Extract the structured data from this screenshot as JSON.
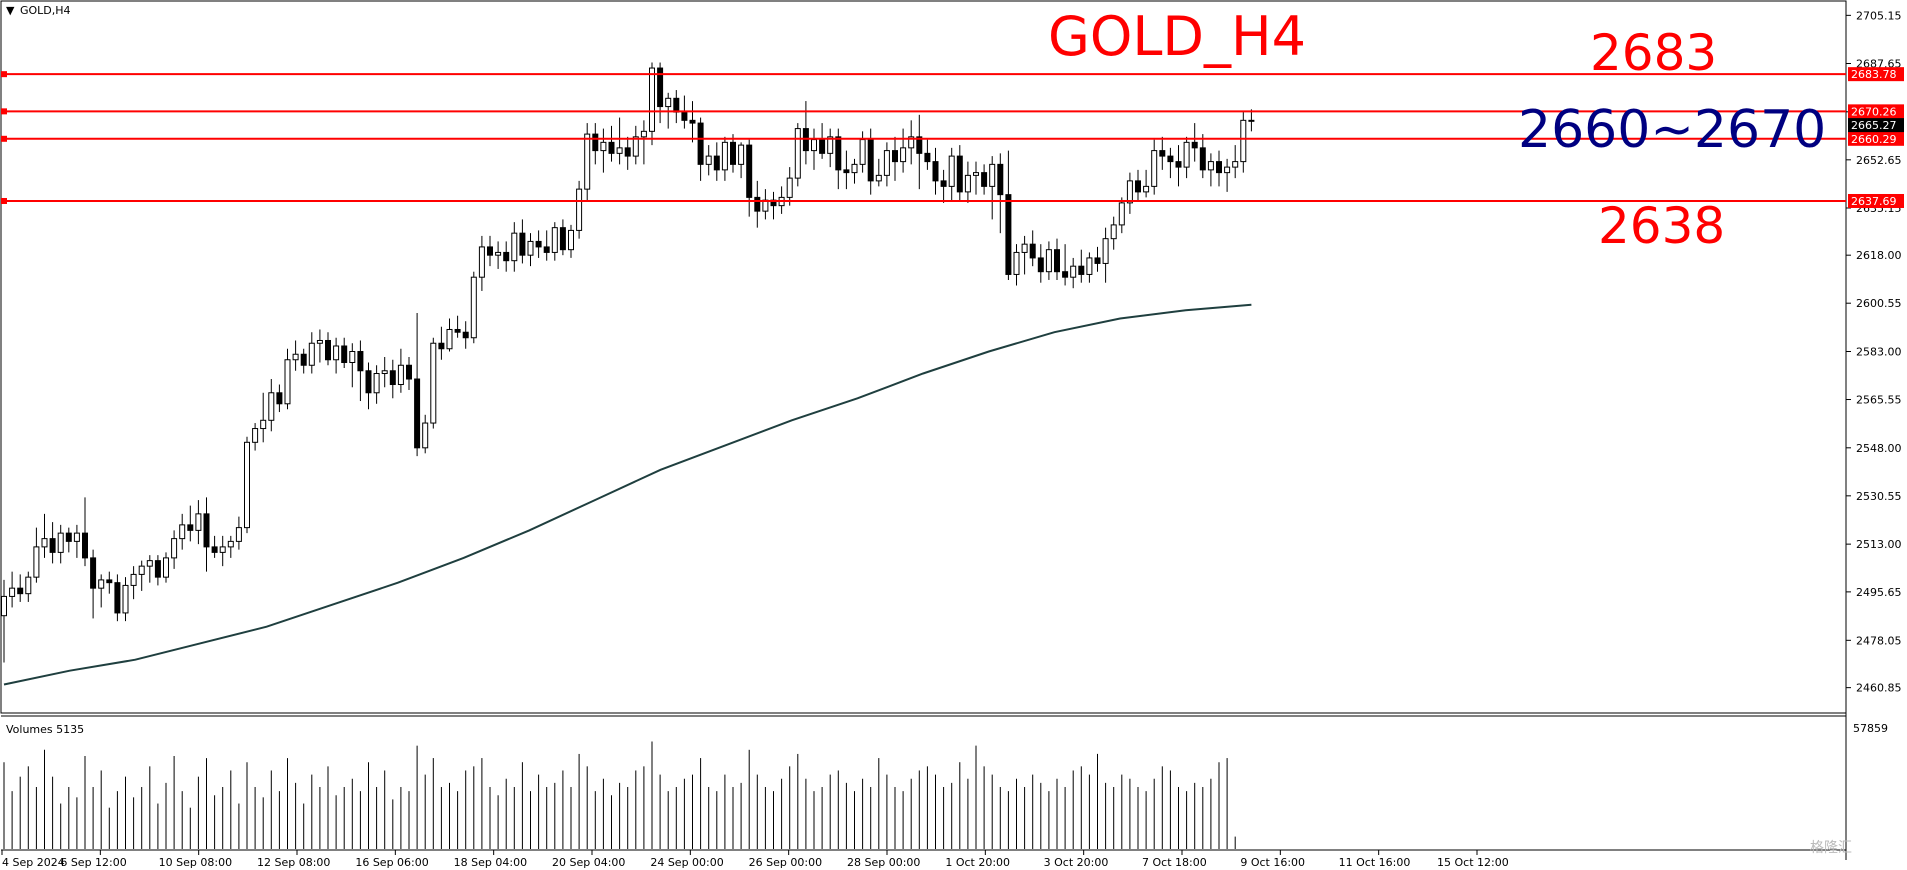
{
  "window": {
    "symbol_label": "GOLD,H4",
    "volume_label": "Volumes 5135",
    "watermark": "格隆汇"
  },
  "annotations": {
    "title": "GOLD_H4",
    "resistance": "2683",
    "zone": "2660~2670",
    "support": "2638"
  },
  "colors": {
    "level_line": "#ff0000",
    "zone_text": "#000080",
    "ma_line": "#1f3f3f",
    "candle_bull": "#ffffff",
    "candle_bear": "#000000",
    "current_price_tag": "#000000"
  },
  "chart_data": {
    "type": "candlestick",
    "price_axis": {
      "ticks": [
        "2705.15",
        "2687.65",
        "2670.10",
        "2652.65",
        "2635.15",
        "2618.00",
        "2600.55",
        "2583.00",
        "2565.55",
        "2548.00",
        "2530.55",
        "2513.00",
        "2495.65",
        "2478.05",
        "2460.85"
      ],
      "range": [
        2452,
        2710
      ]
    },
    "levels": [
      {
        "value": 2683.78,
        "label": "2683.78"
      },
      {
        "value": 2670.26,
        "label": "2670.26"
      },
      {
        "value": 2660.29,
        "label": "2660.29"
      },
      {
        "value": 2637.69,
        "label": "2637.69"
      }
    ],
    "current_price": {
      "value": 2665.27,
      "label": "2665.27"
    },
    "time_labels": [
      "4 Sep 2024",
      "6 Sep 12:00",
      "10 Sep 08:00",
      "12 Sep 08:00",
      "16 Sep 06:00",
      "18 Sep 04:00",
      "20 Sep 04:00",
      "24 Sep 00:00",
      "26 Sep 00:00",
      "28 Sep 00:00",
      "1 Oct 20:00",
      "3 Oct 20:00",
      "7 Oct 18:00",
      "9 Oct 16:00",
      "11 Oct 16:00",
      "15 Oct 12:00"
    ],
    "candles": [
      [
        2487,
        2500,
        2470,
        2494
      ],
      [
        2494,
        2503,
        2490,
        2497
      ],
      [
        2497,
        2502,
        2492,
        2495
      ],
      [
        2495,
        2503,
        2492,
        2501
      ],
      [
        2501,
        2519,
        2499,
        2512
      ],
      [
        2512,
        2524,
        2508,
        2515
      ],
      [
        2515,
        2521,
        2506,
        2510
      ],
      [
        2510,
        2520,
        2506,
        2517
      ],
      [
        2517,
        2519,
        2510,
        2514
      ],
      [
        2514,
        2520,
        2508,
        2517
      ],
      [
        2517,
        2530,
        2505,
        2508
      ],
      [
        2508,
        2511,
        2486,
        2497
      ],
      [
        2497,
        2502,
        2490,
        2500
      ],
      [
        2500,
        2503,
        2495,
        2499
      ],
      [
        2499,
        2502,
        2485,
        2488
      ],
      [
        2488,
        2501,
        2485,
        2498
      ],
      [
        2498,
        2505,
        2493,
        2502
      ],
      [
        2502,
        2507,
        2496,
        2505
      ],
      [
        2505,
        2509,
        2499,
        2507
      ],
      [
        2507,
        2509,
        2498,
        2501
      ],
      [
        2501,
        2510,
        2499,
        2508
      ],
      [
        2508,
        2518,
        2504,
        2515
      ],
      [
        2515,
        2524,
        2511,
        2520
      ],
      [
        2520,
        2527,
        2514,
        2518
      ],
      [
        2518,
        2529,
        2513,
        2524
      ],
      [
        2524,
        2530,
        2503,
        2512
      ],
      [
        2512,
        2516,
        2508,
        2510
      ],
      [
        2510,
        2516,
        2505,
        2512
      ],
      [
        2512,
        2516,
        2508,
        2514
      ],
      [
        2514,
        2523,
        2511,
        2519
      ],
      [
        2519,
        2552,
        2517,
        2550
      ],
      [
        2550,
        2557,
        2547,
        2555
      ],
      [
        2555,
        2568,
        2550,
        2558
      ],
      [
        2558,
        2573,
        2554,
        2568
      ],
      [
        2568,
        2571,
        2561,
        2564
      ],
      [
        2564,
        2584,
        2562,
        2580
      ],
      [
        2580,
        2587,
        2576,
        2582
      ],
      [
        2582,
        2584,
        2575,
        2578
      ],
      [
        2578,
        2590,
        2575,
        2586
      ],
      [
        2586,
        2591,
        2579,
        2587
      ],
      [
        2587,
        2590,
        2578,
        2580
      ],
      [
        2580,
        2588,
        2575,
        2585
      ],
      [
        2585,
        2588,
        2577,
        2579
      ],
      [
        2579,
        2586,
        2570,
        2583
      ],
      [
        2583,
        2587,
        2565,
        2576
      ],
      [
        2576,
        2579,
        2562,
        2568
      ],
      [
        2568,
        2578,
        2564,
        2575
      ],
      [
        2575,
        2581,
        2570,
        2576
      ],
      [
        2576,
        2580,
        2566,
        2571
      ],
      [
        2571,
        2584,
        2568,
        2578
      ],
      [
        2578,
        2581,
        2569,
        2573
      ],
      [
        2573,
        2597,
        2545,
        2548
      ],
      [
        2548,
        2560,
        2546,
        2557
      ],
      [
        2557,
        2588,
        2555,
        2586
      ],
      [
        2586,
        2592,
        2580,
        2584
      ],
      [
        2584,
        2595,
        2583,
        2591
      ],
      [
        2591,
        2596,
        2588,
        2590
      ],
      [
        2590,
        2594,
        2584,
        2588
      ],
      [
        2588,
        2612,
        2586,
        2610
      ],
      [
        2610,
        2625,
        2605,
        2621
      ],
      [
        2621,
        2625,
        2614,
        2618
      ],
      [
        2618,
        2623,
        2613,
        2619
      ],
      [
        2619,
        2623,
        2612,
        2616
      ],
      [
        2616,
        2630,
        2612,
        2626
      ],
      [
        2626,
        2631,
        2615,
        2618
      ],
      [
        2618,
        2626,
        2614,
        2623
      ],
      [
        2623,
        2627,
        2617,
        2621
      ],
      [
        2621,
        2627,
        2616,
        2619
      ],
      [
        2619,
        2630,
        2616,
        2628
      ],
      [
        2628,
        2631,
        2618,
        2620
      ],
      [
        2620,
        2629,
        2617,
        2627
      ],
      [
        2627,
        2645,
        2624,
        2642
      ],
      [
        2642,
        2666,
        2638,
        2662
      ],
      [
        2662,
        2666,
        2651,
        2656
      ],
      [
        2656,
        2664,
        2648,
        2659
      ],
      [
        2659,
        2665,
        2652,
        2655
      ],
      [
        2655,
        2668,
        2651,
        2657
      ],
      [
        2657,
        2661,
        2649,
        2654
      ],
      [
        2654,
        2665,
        2651,
        2661
      ],
      [
        2661,
        2667,
        2651,
        2663
      ],
      [
        2663,
        2688,
        2658,
        2686
      ],
      [
        2686,
        2688,
        2666,
        2672
      ],
      [
        2672,
        2677,
        2664,
        2675
      ],
      [
        2675,
        2678,
        2666,
        2670
      ],
      [
        2670,
        2676,
        2664,
        2667
      ],
      [
        2667,
        2674,
        2659,
        2666
      ],
      [
        2666,
        2668,
        2645,
        2651
      ],
      [
        2651,
        2658,
        2647,
        2654
      ],
      [
        2654,
        2659,
        2645,
        2649
      ],
      [
        2649,
        2661,
        2645,
        2659
      ],
      [
        2659,
        2662,
        2648,
        2651
      ],
      [
        2651,
        2659,
        2646,
        2658
      ],
      [
        2658,
        2660,
        2632,
        2639
      ],
      [
        2639,
        2645,
        2628,
        2634
      ],
      [
        2634,
        2642,
        2631,
        2638
      ],
      [
        2638,
        2641,
        2631,
        2636
      ],
      [
        2636,
        2643,
        2633,
        2639
      ],
      [
        2639,
        2650,
        2636,
        2646
      ],
      [
        2646,
        2666,
        2643,
        2664
      ],
      [
        2664,
        2674,
        2651,
        2656
      ],
      [
        2656,
        2664,
        2649,
        2660
      ],
      [
        2660,
        2666,
        2653,
        2655
      ],
      [
        2655,
        2664,
        2650,
        2661
      ],
      [
        2661,
        2664,
        2642,
        2649
      ],
      [
        2649,
        2656,
        2642,
        2648
      ],
      [
        2648,
        2653,
        2644,
        2651
      ],
      [
        2651,
        2663,
        2648,
        2660
      ],
      [
        2660,
        2664,
        2640,
        2645
      ],
      [
        2645,
        2653,
        2643,
        2647
      ],
      [
        2647,
        2659,
        2643,
        2656
      ],
      [
        2656,
        2661,
        2645,
        2652
      ],
      [
        2652,
        2664,
        2648,
        2657
      ],
      [
        2657,
        2667,
        2651,
        2661
      ],
      [
        2661,
        2669,
        2642,
        2655
      ],
      [
        2655,
        2660,
        2649,
        2652
      ],
      [
        2652,
        2657,
        2640,
        2645
      ],
      [
        2645,
        2649,
        2637,
        2643
      ],
      [
        2643,
        2657,
        2638,
        2654
      ],
      [
        2654,
        2658,
        2638,
        2641
      ],
      [
        2641,
        2652,
        2637,
        2647
      ],
      [
        2647,
        2652,
        2640,
        2648
      ],
      [
        2648,
        2651,
        2640,
        2643
      ],
      [
        2643,
        2654,
        2631,
        2651
      ],
      [
        2651,
        2655,
        2626,
        2640
      ],
      [
        2640,
        2656,
        2609,
        2611
      ],
      [
        2611,
        2622,
        2607,
        2619
      ],
      [
        2619,
        2625,
        2611,
        2622
      ],
      [
        2622,
        2627,
        2614,
        2617
      ],
      [
        2617,
        2622,
        2608,
        2612
      ],
      [
        2612,
        2623,
        2609,
        2620
      ],
      [
        2620,
        2624,
        2609,
        2612
      ],
      [
        2612,
        2622,
        2607,
        2610
      ],
      [
        2610,
        2617,
        2606,
        2614
      ],
      [
        2614,
        2620,
        2608,
        2611
      ],
      [
        2611,
        2619,
        2608,
        2617
      ],
      [
        2617,
        2621,
        2612,
        2615
      ],
      [
        2615,
        2628,
        2608,
        2624
      ],
      [
        2624,
        2632,
        2620,
        2629
      ],
      [
        2629,
        2639,
        2626,
        2637
      ],
      [
        2637,
        2648,
        2633,
        2645
      ],
      [
        2645,
        2649,
        2638,
        2641
      ],
      [
        2641,
        2649,
        2639,
        2643
      ],
      [
        2643,
        2660,
        2640,
        2656
      ],
      [
        2656,
        2661,
        2649,
        2654
      ],
      [
        2654,
        2657,
        2646,
        2652
      ],
      [
        2652,
        2658,
        2643,
        2650
      ],
      [
        2650,
        2661,
        2646,
        2659
      ],
      [
        2659,
        2666,
        2652,
        2657
      ],
      [
        2657,
        2662,
        2646,
        2649
      ],
      [
        2649,
        2655,
        2643,
        2652
      ],
      [
        2652,
        2656,
        2643,
        2648
      ],
      [
        2648,
        2653,
        2641,
        2650
      ],
      [
        2650,
        2658,
        2646,
        2652
      ],
      [
        2652,
        2670,
        2648,
        2667
      ],
      [
        2667,
        2671,
        2663,
        2667
      ]
    ],
    "moving_average": [
      [
        0,
        2462
      ],
      [
        40,
        2467
      ],
      [
        80,
        2471
      ],
      [
        120,
        2477
      ],
      [
        160,
        2483
      ],
      [
        200,
        2491
      ],
      [
        240,
        2499
      ],
      [
        280,
        2508
      ],
      [
        320,
        2518
      ],
      [
        360,
        2529
      ],
      [
        400,
        2540
      ],
      [
        440,
        2549
      ],
      [
        480,
        2558
      ],
      [
        520,
        2566
      ],
      [
        560,
        2575
      ],
      [
        600,
        2583
      ],
      [
        640,
        2590
      ],
      [
        680,
        2595
      ],
      [
        720,
        2598
      ],
      [
        760,
        2600
      ]
    ],
    "volumes": [
      42,
      28,
      35,
      40,
      30,
      48,
      35,
      22,
      30,
      25,
      45,
      30,
      38,
      20,
      28,
      35,
      25,
      30,
      40,
      22,
      32,
      45,
      28,
      20,
      35,
      44,
      26,
      30,
      38,
      22,
      42,
      30,
      25,
      38,
      28,
      44,
      32,
      22,
      36,
      30,
      40,
      26,
      30,
      34,
      28,
      42,
      30,
      38,
      24,
      30,
      28,
      50,
      36,
      44,
      30,
      32,
      28,
      38,
      40,
      44,
      30,
      26,
      34,
      30,
      42,
      28,
      36,
      30,
      32,
      38,
      30,
      46,
      40,
      28,
      34,
      26,
      32,
      30,
      38,
      40,
      52,
      36,
      28,
      30,
      34,
      36,
      44,
      30,
      28,
      36,
      30,
      32,
      48,
      36,
      30,
      28,
      34,
      40,
      46,
      34,
      28,
      30,
      36,
      38,
      32,
      28,
      34,
      30,
      44,
      36,
      30,
      28,
      34,
      38,
      40,
      36,
      30,
      32,
      42,
      34,
      50,
      40,
      36,
      30,
      28,
      34,
      30,
      36,
      32,
      28,
      34,
      30,
      38,
      40,
      36,
      46,
      32,
      30,
      36,
      34,
      30,
      28,
      34,
      40,
      38,
      30,
      28,
      32,
      30,
      34,
      42,
      44,
      6
    ],
    "volume_axis": {
      "max_label": "57859",
      "max": 57859
    }
  }
}
